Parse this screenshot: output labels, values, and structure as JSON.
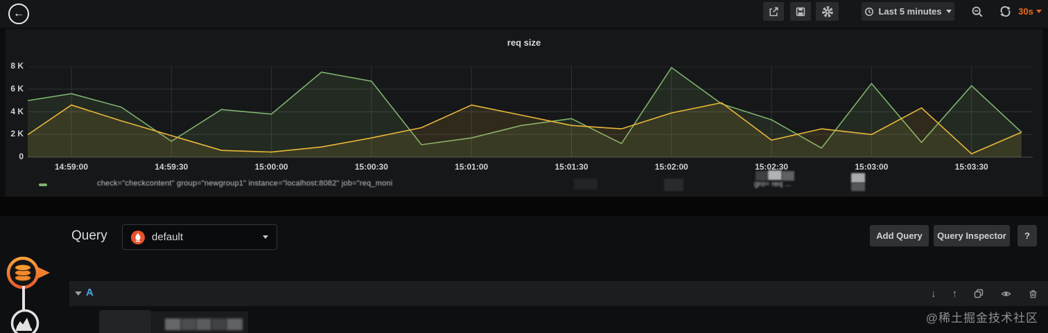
{
  "header": {
    "back_glyph": "←",
    "time_range_label": "Last 5 minutes",
    "refresh_interval": "30s"
  },
  "panel": {
    "title": "req size"
  },
  "chart_data": {
    "type": "area",
    "title": "req size",
    "ylim": [
      0,
      8000
    ],
    "x_start_time": "14:58:45",
    "x_step_seconds": 15,
    "grid": true,
    "legend_position": "bottom",
    "y_ticks": [
      {
        "label": "0",
        "value": 0
      },
      {
        "label": "2 K",
        "value": 2000
      },
      {
        "label": "4 K",
        "value": 4000
      },
      {
        "label": "6 K",
        "value": 6000
      },
      {
        "label": "8 K",
        "value": 8000
      }
    ],
    "x_ticks": [
      {
        "label": "14:59:00"
      },
      {
        "label": "14:59:30"
      },
      {
        "label": "15:00:00"
      },
      {
        "label": "15:00:30"
      },
      {
        "label": "15:01:00"
      },
      {
        "label": "15:01:30"
      },
      {
        "label": "15:02:00"
      },
      {
        "label": "15:02:30"
      },
      {
        "label": "15:03:00"
      },
      {
        "label": "15:03:30"
      }
    ],
    "series": [
      {
        "name": "check=\"checkcontent\" group=\"newgroup1\" instance=\"localhost:8082\" job=\"req_moni",
        "color": "#7EB26D",
        "values": [
          4900,
          5600,
          4400,
          1400,
          4200,
          3800,
          7500,
          6700,
          1100,
          1700,
          2800,
          3400,
          1200,
          7900,
          4700,
          3300,
          800,
          6500,
          1300,
          6300,
          2200
        ]
      },
      {
        "name": "gro= req ...",
        "color": "#EAB839",
        "values": [
          1600,
          4600,
          3200,
          1900,
          600,
          450,
          900,
          1700,
          2600,
          4600,
          3700,
          2800,
          2500,
          3900,
          4800,
          1500,
          2500,
          2000,
          4350,
          300,
          2200
        ]
      }
    ]
  },
  "query": {
    "section_label": "Query",
    "datasource": {
      "selected": "default"
    },
    "buttons": {
      "add": "Add Query",
      "inspector": "Query Inspector",
      "help": "?"
    },
    "row": {
      "ref_id": "A",
      "move_down_glyph": "↓",
      "move_up_glyph": "↑"
    }
  },
  "watermark": {
    "text": "@稀土掘金技术社区"
  },
  "colors": {
    "accent_orange": "#eb6c1c",
    "series_green": "#7EB26D",
    "series_yellow": "#EAB839",
    "ref_id_blue": "#4aa8e0",
    "prometheus_orange": "#e6522c"
  }
}
